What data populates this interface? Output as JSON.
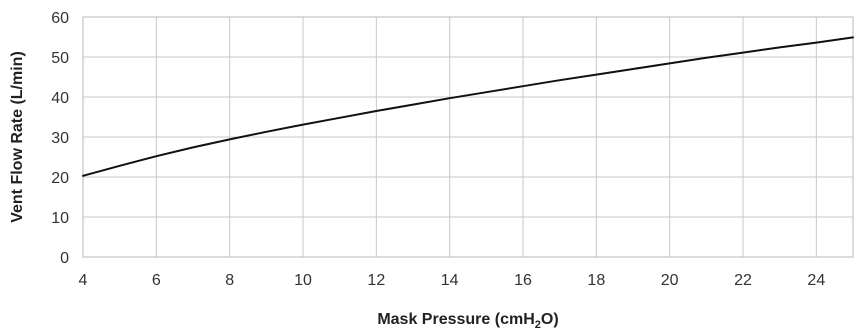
{
  "chart_data": {
    "type": "line",
    "title": "",
    "xlabel": "Mask Pressure (cmH",
    "xlabel_subscript": "2",
    "xlabel_suffix": "O)",
    "ylabel": "Vent Flow Rate (L/min)",
    "xlim": [
      4,
      25
    ],
    "ylim": [
      0,
      60
    ],
    "x_ticks": [
      4,
      6,
      8,
      10,
      12,
      14,
      16,
      18,
      20,
      22,
      24
    ],
    "y_ticks": [
      0,
      10,
      20,
      30,
      40,
      50,
      60
    ],
    "grid": true,
    "legend": "none",
    "series": [
      {
        "x": [
          4,
          5,
          6,
          7,
          8,
          9,
          10,
          11,
          12,
          13,
          14,
          15,
          16,
          17,
          18,
          19,
          20,
          21,
          22,
          23,
          24,
          25
        ],
        "y": [
          20.3,
          22.8,
          25.2,
          27.4,
          29.4,
          31.3,
          33.1,
          34.8,
          36.5,
          38.1,
          39.7,
          41.2,
          42.7,
          44.2,
          45.6,
          47.0,
          48.4,
          49.8,
          51.1,
          52.4,
          53.6,
          54.9
        ],
        "color": "#111111"
      }
    ]
  }
}
